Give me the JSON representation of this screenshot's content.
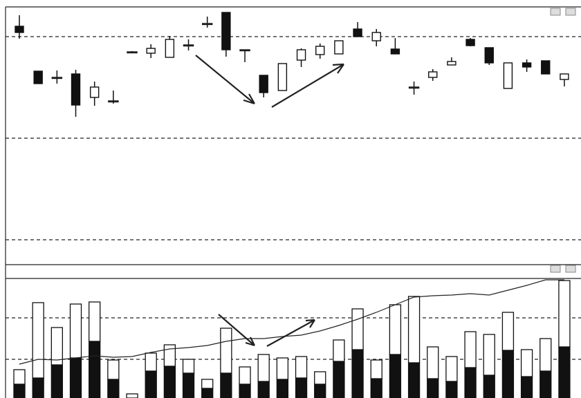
{
  "chart_data": [
    {
      "type": "candlestick",
      "categories": [
        null,
        null,
        null,
        null,
        null,
        null,
        null,
        null,
        null,
        null,
        null,
        null,
        null,
        null,
        null,
        null,
        null,
        null,
        null,
        null,
        null,
        null,
        null,
        null,
        null,
        null,
        null,
        null,
        null,
        null
      ],
      "open": [
        345,
        280,
        271,
        276,
        242,
        237,
        308,
        306,
        300,
        318,
        349,
        365,
        311,
        274,
        252,
        296,
        304,
        305,
        341,
        324,
        312,
        257,
        271,
        289,
        326,
        314,
        255,
        292,
        295,
        268
      ],
      "high": [
        361,
        280,
        281,
        282,
        265,
        252,
        309,
        319,
        331,
        326,
        359,
        365,
        311,
        274,
        291,
        313,
        320,
        324,
        351,
        341,
        328,
        265,
        283,
        300,
        328,
        314,
        292,
        297,
        295,
        276
      ],
      "low": [
        327,
        262,
        262,
        214,
        230,
        233,
        307,
        299,
        300,
        310,
        343,
        301,
        293,
        242,
        252,
        286,
        298,
        305,
        330,
        316,
        305,
        246,
        266,
        289,
        316,
        289,
        255,
        279,
        276,
        258
      ],
      "close": [
        336,
        262,
        271,
        231,
        257,
        237,
        308,
        313,
        326,
        318,
        349,
        311,
        311,
        249,
        291,
        311,
        316,
        324,
        330,
        336,
        305,
        257,
        279,
        294,
        317,
        292,
        292,
        286,
        276,
        276
      ],
      "color": "#111111",
      "ylim": [
        0,
        373
      ],
      "yticks": [
        36,
        183,
        330
      ],
      "grid": true
    },
    {
      "type": "bar",
      "stacked": true,
      "categories": [
        null,
        null,
        null,
        null,
        null,
        null,
        null,
        null,
        null,
        null,
        null,
        null,
        null,
        null,
        null,
        null,
        null,
        null,
        null,
        null,
        null,
        null,
        null,
        null,
        null,
        null,
        null,
        null,
        null,
        null
      ],
      "series": [
        {
          "color": "#111111",
          "values": [
            20,
            29,
            48,
            58,
            82,
            27,
            0,
            39,
            46,
            36,
            14,
            36,
            20,
            24,
            27,
            29,
            20,
            53,
            70,
            28,
            63,
            51,
            28,
            24,
            44,
            33,
            69,
            31,
            39,
            74
          ]
        },
        {
          "color": "#ffffff",
          "values": [
            21,
            109,
            54,
            78,
            57,
            28,
            6,
            26,
            31,
            20,
            13,
            65,
            25,
            39,
            31,
            31,
            18,
            31,
            59,
            27,
            72,
            96,
            46,
            36,
            52,
            59,
            55,
            39,
            47,
            96
          ]
        },
        {
          "type": "line",
          "color": "#222222",
          "values": [
            49,
            56,
            55,
            58,
            61,
            59,
            60,
            66,
            71,
            73,
            76,
            82,
            86,
            86,
            89,
            91,
            97,
            105,
            114,
            124,
            135,
            146,
            148,
            149,
            151,
            149,
            156,
            163,
            171,
            171
          ]
        }
      ],
      "ylim": [
        0,
        173
      ],
      "yticks": [
        56,
        116
      ],
      "grid": true
    }
  ]
}
